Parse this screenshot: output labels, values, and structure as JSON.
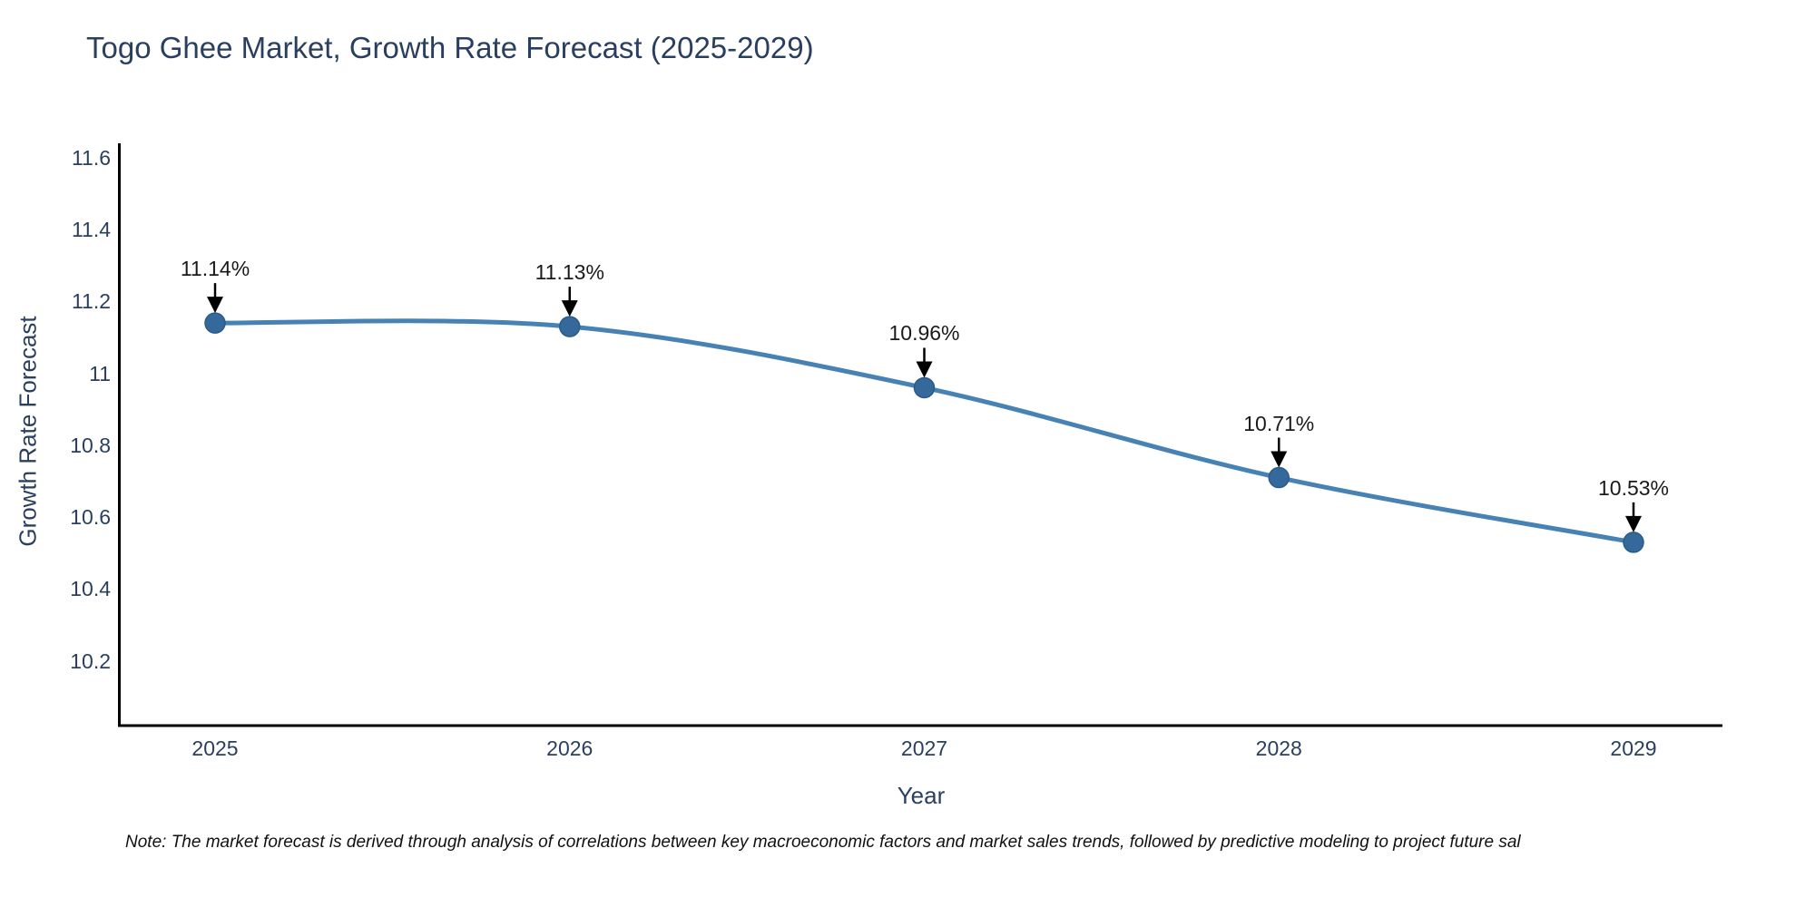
{
  "title": "Togo Ghee Market, Growth Rate Forecast (2025-2029)",
  "note": "Note: The market forecast is derived through analysis of correlations between key macroeconomic factors and market sales trends, followed by predictive modeling to project future sal",
  "colors": {
    "background": "#ffffff",
    "line": "#4682b4",
    "marker_fill": "#35699c",
    "marker_edge": "#2c5b88",
    "axis_spine": "#000000",
    "label_text": "#2a3f5f",
    "annotation_text": "#1a1a1a",
    "arrow": "#000000",
    "note_text": "#111111"
  },
  "chart_data": {
    "type": "line",
    "title": "Togo Ghee Market, Growth Rate Forecast (2025-2029)",
    "xlabel": "Year",
    "ylabel": "Growth Rate Forecast",
    "x": [
      2025,
      2026,
      2027,
      2028,
      2029
    ],
    "x_tick_labels": [
      "2025",
      "2026",
      "2027",
      "2028",
      "2029"
    ],
    "series": [
      {
        "name": "Growth Rate Forecast",
        "values": [
          11.14,
          11.13,
          10.96,
          10.71,
          10.53
        ]
      }
    ],
    "point_labels": [
      "11.14%",
      "11.13%",
      "10.96%",
      "10.71%",
      "10.53%"
    ],
    "yticks": [
      10.2,
      10.4,
      10.6,
      10.8,
      11,
      11.2,
      11.4,
      11.6
    ],
    "ytick_labels": [
      "10.2",
      "10.4",
      "10.6",
      "10.8",
      "11",
      "11.2",
      "11.4",
      "11.6"
    ],
    "ylim": [
      10.02,
      11.64
    ],
    "line_shape": "spline",
    "grid": false,
    "legend_position": "none",
    "annotation_arrows": true
  }
}
